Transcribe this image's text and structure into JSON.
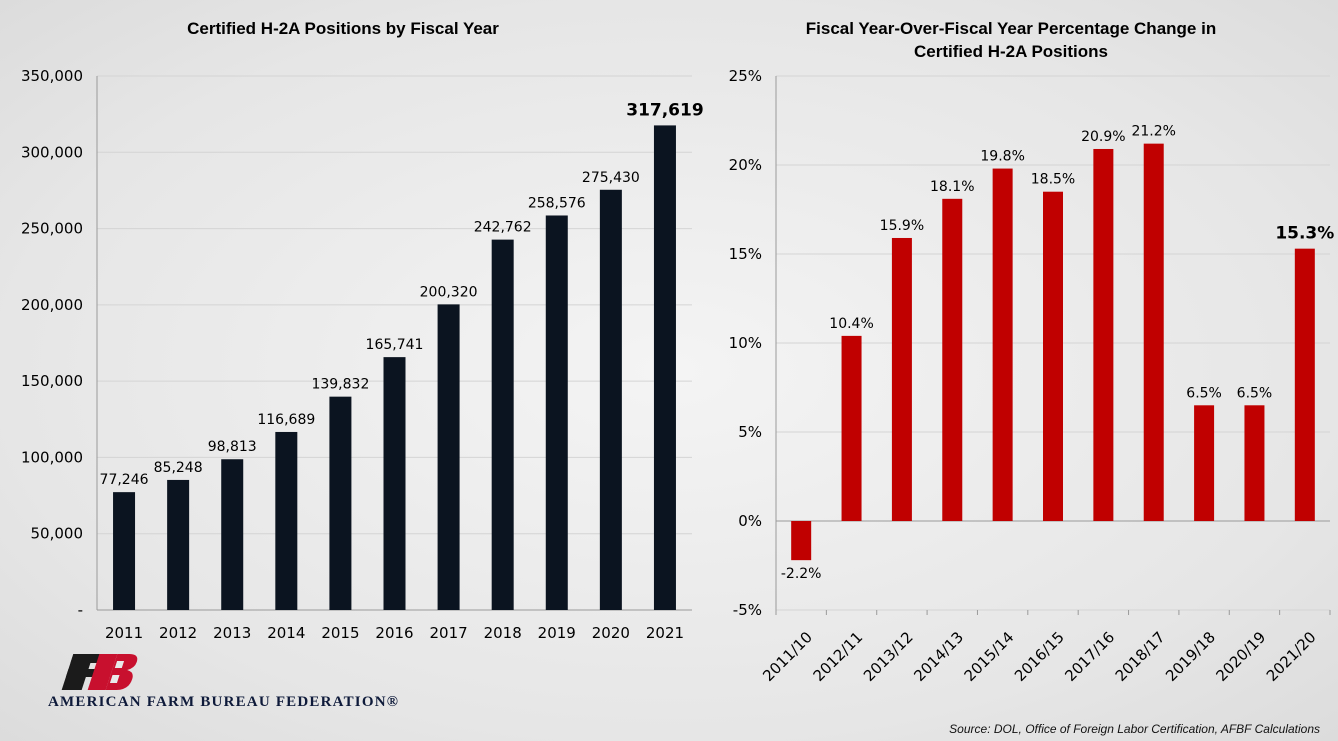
{
  "colors": {
    "left_bar": "#0b1420",
    "right_bar": "#c00000",
    "logo_red": "#c8102e",
    "logo_dark": "#1b1b1b"
  },
  "chart_data": [
    {
      "type": "bar",
      "title": "Certified H-2A Positions by Fiscal Year",
      "categories": [
        "2011",
        "2012",
        "2013",
        "2014",
        "2015",
        "2016",
        "2017",
        "2018",
        "2019",
        "2020",
        "2021"
      ],
      "values": [
        77246,
        85248,
        98813,
        116689,
        139832,
        165741,
        200320,
        242762,
        258576,
        275430,
        317619
      ],
      "data_labels": [
        "77,246",
        "85,248",
        "98,813",
        "116,689",
        "139,832",
        "165,741",
        "200,320",
        "242,762",
        "258,576",
        "275,430",
        "317,619"
      ],
      "highlight_index": 10,
      "ylim": [
        0,
        350000
      ],
      "yticks": [
        0,
        50000,
        100000,
        150000,
        200000,
        250000,
        300000,
        350000
      ],
      "ytick_labels": [
        "-",
        "50,000",
        "100,000",
        "150,000",
        "200,000",
        "250,000",
        "300,000",
        "350,000"
      ],
      "grid": true,
      "color": "#0b1420"
    },
    {
      "type": "bar",
      "title": "Fiscal Year-Over-Fiscal Year Percentage Change in Certified H-2A Positions",
      "title_lines": [
        "Fiscal Year-Over-Fiscal Year Percentage Change in",
        "Certified H-2A Positions"
      ],
      "categories": [
        "2011/10",
        "2012/11",
        "2013/12",
        "2014/13",
        "2015/14",
        "2016/15",
        "2017/16",
        "2018/17",
        "2019/18",
        "2020/19",
        "2021/20"
      ],
      "values": [
        -2.2,
        10.4,
        15.9,
        18.1,
        19.8,
        18.5,
        20.9,
        21.2,
        6.5,
        6.5,
        15.3
      ],
      "data_labels": [
        "-2.2%",
        "10.4%",
        "15.9%",
        "18.1%",
        "19.8%",
        "18.5%",
        "20.9%",
        "21.2%",
        "6.5%",
        "6.5%",
        "15.3%"
      ],
      "highlight_index": 10,
      "ylim": [
        -5,
        25
      ],
      "yticks": [
        -5,
        0,
        5,
        10,
        15,
        20,
        25
      ],
      "ytick_labels": [
        "-5%",
        "0%",
        "5%",
        "10%",
        "15%",
        "20%",
        "25%"
      ],
      "grid": true,
      "color": "#c00000"
    }
  ],
  "footer": {
    "org_name": "AMERICAN FARM BUREAU FEDERATION®",
    "source": "Source: DOL, Office of Foreign Labor Certification, AFBF Calculations"
  },
  "icons": {
    "logo": "afbf-logo-icon"
  }
}
